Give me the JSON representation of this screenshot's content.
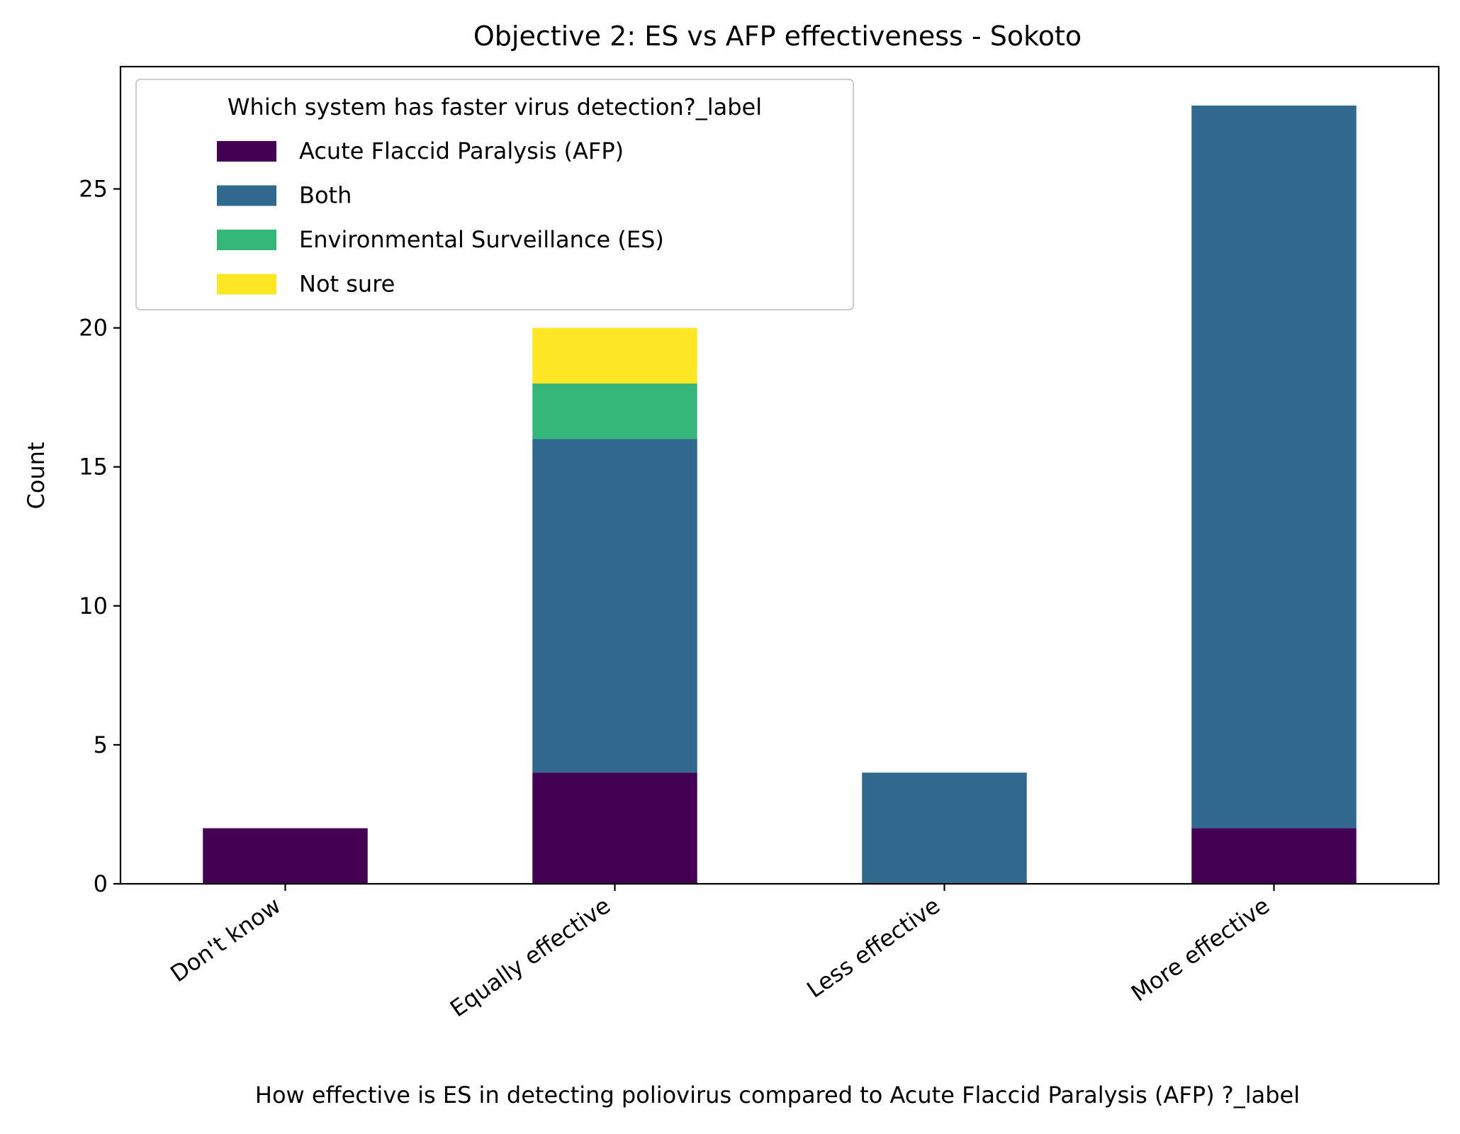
{
  "chart_data": {
    "type": "bar",
    "stacked": true,
    "title": "Objective 2: ES vs AFP effectiveness - Sokoto",
    "xlabel": "How effective is ES in detecting poliovirus compared to  Acute Flaccid Paralysis (AFP) ?_label",
    "ylabel": "Count",
    "categories": [
      "Don't know",
      "Equally effective",
      "Less effective",
      "More effective"
    ],
    "ylim": [
      0,
      29.4
    ],
    "yticks": [
      0,
      5,
      10,
      15,
      20,
      25
    ],
    "grid": false,
    "legend": {
      "title": "Which system has faster virus detection?_label",
      "placement": "top-left"
    },
    "series": [
      {
        "name": "Acute Flaccid Paralysis (AFP)",
        "color": "#440154",
        "values": [
          2,
          4,
          0,
          2
        ]
      },
      {
        "name": "Both",
        "color": "#31688e",
        "values": [
          0,
          12,
          4,
          26
        ]
      },
      {
        "name": "Environmental Surveillance (ES)",
        "color": "#35b779",
        "values": [
          0,
          2,
          0,
          0
        ]
      },
      {
        "name": "Not sure",
        "color": "#fde725",
        "values": [
          0,
          2,
          0,
          0
        ]
      }
    ]
  }
}
